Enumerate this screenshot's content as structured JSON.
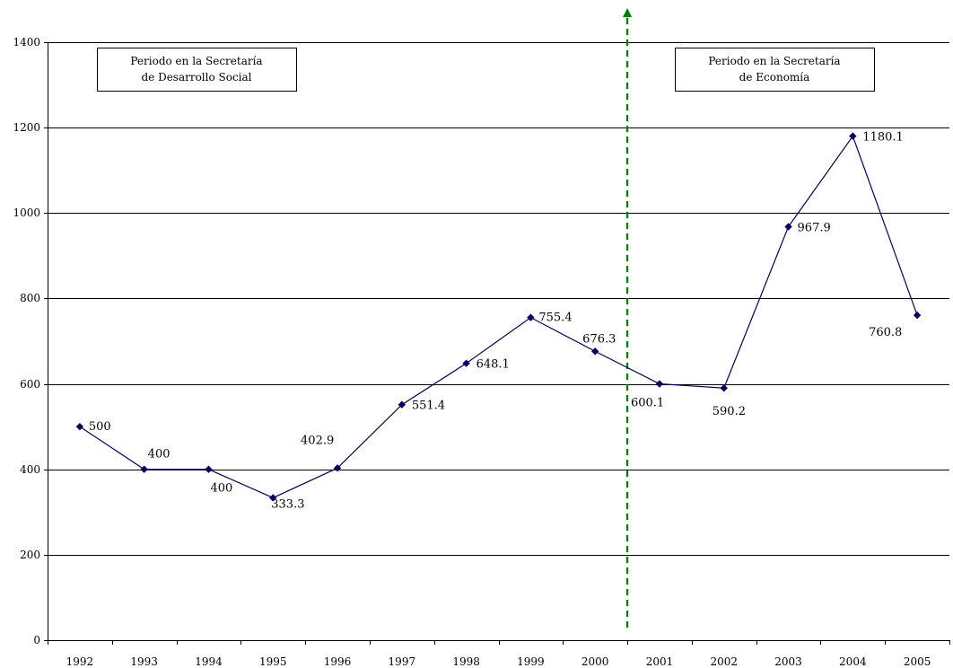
{
  "chart_data": {
    "type": "line",
    "title": "",
    "xlabel": "",
    "ylabel": "",
    "ylim": [
      0,
      1400
    ],
    "yticks": [
      0,
      200,
      400,
      600,
      800,
      1000,
      1200,
      1400
    ],
    "grid": true,
    "categories": [
      "1992",
      "1993",
      "1994",
      "1995",
      "1996",
      "1997",
      "1998",
      "1999",
      "2000",
      "2001",
      "2002",
      "2003",
      "2004",
      "2005"
    ],
    "series": [
      {
        "color": "#000066",
        "values": [
          500,
          400,
          400,
          333.3,
          402.9,
          551.4,
          648.1,
          755.4,
          676.3,
          600.1,
          590.2,
          967.9,
          1180.1,
          760.8
        ],
        "data_labels": [
          "500",
          "400",
          "400",
          "333.3",
          "402.9",
          "551.4",
          "648.1",
          "755.4",
          "676.3",
          "600.1",
          "590.2",
          "967.9",
          "1180.1",
          "760.8"
        ]
      }
    ],
    "divider": {
      "between": [
        "2000",
        "2001"
      ],
      "color": "#008000",
      "style": "dashed-arrow"
    },
    "annotations": [
      {
        "lines": [
          "Periodo en la Secretaría",
          "de Desarrollo Social"
        ]
      },
      {
        "lines": [
          "Periodo en la Secretaría",
          "de Economía"
        ]
      }
    ]
  }
}
